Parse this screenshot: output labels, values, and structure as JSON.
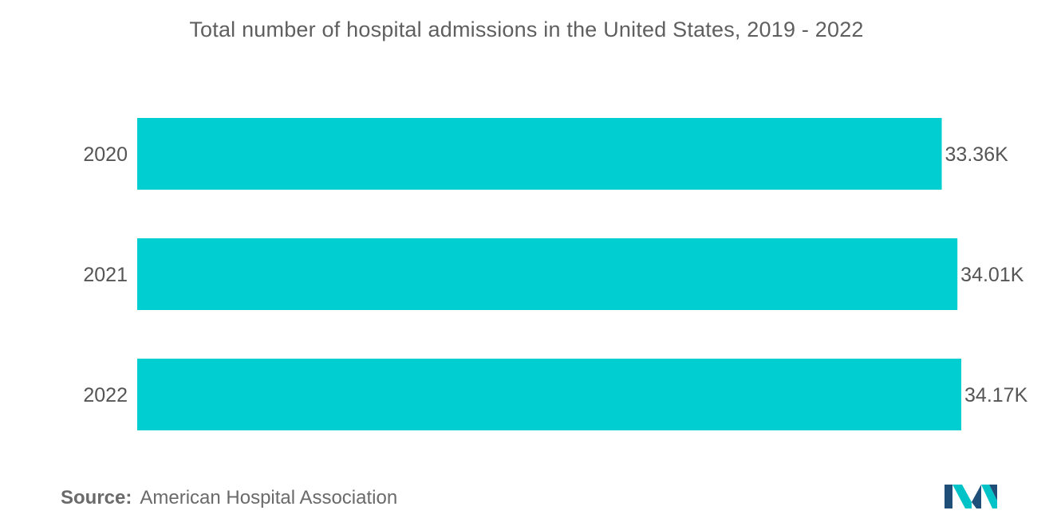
{
  "chart_data": {
    "type": "bar",
    "orientation": "horizontal",
    "title": "Total number of hospital admissions in the United States, 2019 - 2022",
    "categories": [
      "2020",
      "2021",
      "2022"
    ],
    "values": [
      33.36,
      34.01,
      34.17
    ],
    "value_labels": [
      "33.36K",
      "34.01K",
      "34.17K"
    ],
    "xlim": [
      0,
      34.5
    ],
    "grid": false,
    "legend": "none",
    "bar_color": "#00ced1"
  },
  "source": {
    "label": "Source:",
    "text": "American Hospital Association"
  },
  "colors": {
    "title": "#5f5f5f",
    "axis_text": "#555555",
    "logo_dark": "#1f4e79",
    "logo_light": "#00c3c8"
  },
  "logo": {
    "icon": "mordor-intelligence-logo"
  }
}
